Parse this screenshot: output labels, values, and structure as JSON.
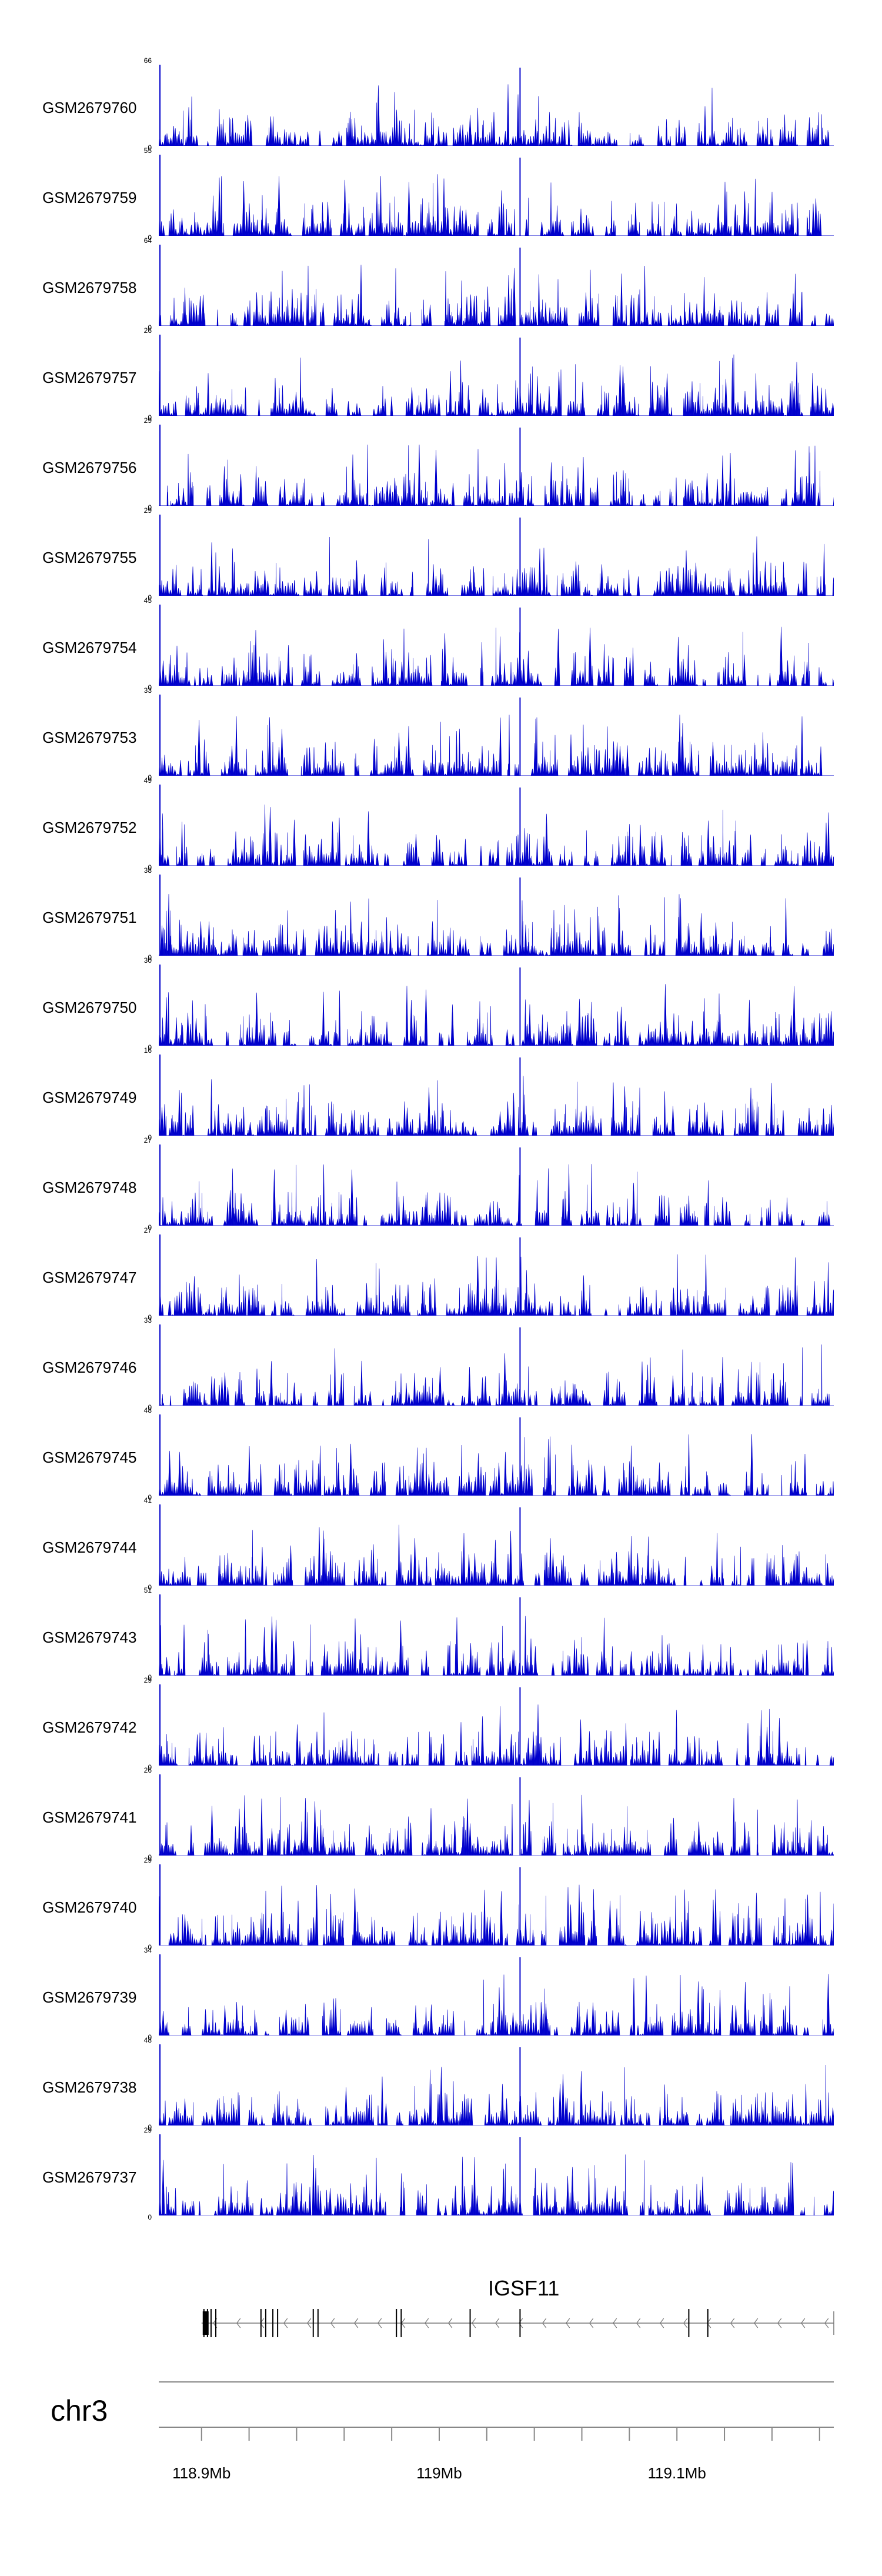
{
  "chart_data": {
    "type": "area",
    "chromosome": "chr3",
    "gene": {
      "name": "IGSF11",
      "strand": "-",
      "start_mb": 118.9,
      "end_mb": 119.166,
      "exons_mb": [
        118.901,
        118.9025,
        118.904,
        118.906,
        118.925,
        118.927,
        118.93,
        118.932,
        118.947,
        118.949,
        118.982,
        118.984,
        119.013,
        119.034,
        119.105,
        119.113
      ]
    },
    "x_axis": {
      "range_mb": [
        118.882,
        119.166
      ],
      "ticks": [
        {
          "value": 118.9,
          "label": "118.9Mb"
        },
        {
          "value": 119.0,
          "label": "119Mb"
        },
        {
          "value": 119.1,
          "label": "119.1Mb"
        }
      ],
      "minor_tick_step_mb": 0.02
    },
    "peak_position_mb": 119.034,
    "tracks": [
      {
        "name": "GSM2679760",
        "ymax": "66",
        "ymin": "0"
      },
      {
        "name": "GSM2679759",
        "ymax": "55",
        "ymin": "0"
      },
      {
        "name": "GSM2679758",
        "ymax": "64",
        "ymin": "0"
      },
      {
        "name": "GSM2679757",
        "ymax": "26",
        "ymin": "0"
      },
      {
        "name": "GSM2679756",
        "ymax": "29",
        "ymin": "0"
      },
      {
        "name": "GSM2679755",
        "ymax": "29",
        "ymin": "0"
      },
      {
        "name": "GSM2679754",
        "ymax": "45",
        "ymin": "0"
      },
      {
        "name": "GSM2679753",
        "ymax": "33",
        "ymin": "0"
      },
      {
        "name": "GSM2679752",
        "ymax": "49",
        "ymin": "0"
      },
      {
        "name": "GSM2679751",
        "ymax": "38",
        "ymin": "0"
      },
      {
        "name": "GSM2679750",
        "ymax": "30",
        "ymin": "0"
      },
      {
        "name": "GSM2679749",
        "ymax": "16",
        "ymin": "0"
      },
      {
        "name": "GSM2679748",
        "ymax": "27",
        "ymin": "0"
      },
      {
        "name": "GSM2679747",
        "ymax": "27",
        "ymin": "0"
      },
      {
        "name": "GSM2679746",
        "ymax": "33",
        "ymin": "0"
      },
      {
        "name": "GSM2679745",
        "ymax": "48",
        "ymin": "0"
      },
      {
        "name": "GSM2679744",
        "ymax": "41",
        "ymin": "0"
      },
      {
        "name": "GSM2679743",
        "ymax": "51",
        "ymin": "0"
      },
      {
        "name": "GSM2679742",
        "ymax": "29",
        "ymin": "0"
      },
      {
        "name": "GSM2679741",
        "ymax": "26",
        "ymin": "0"
      },
      {
        "name": "GSM2679740",
        "ymax": "29",
        "ymin": "0"
      },
      {
        "name": "GSM2679739",
        "ymax": "34",
        "ymin": "0"
      },
      {
        "name": "GSM2679738",
        "ymax": "48",
        "ymin": "0"
      },
      {
        "name": "GSM2679737",
        "ymax": "29",
        "ymin": "0"
      }
    ],
    "colors": {
      "signal": "#0000cc",
      "axis": "#555555",
      "gene": "#000000"
    },
    "legend": "none",
    "grid": false
  }
}
